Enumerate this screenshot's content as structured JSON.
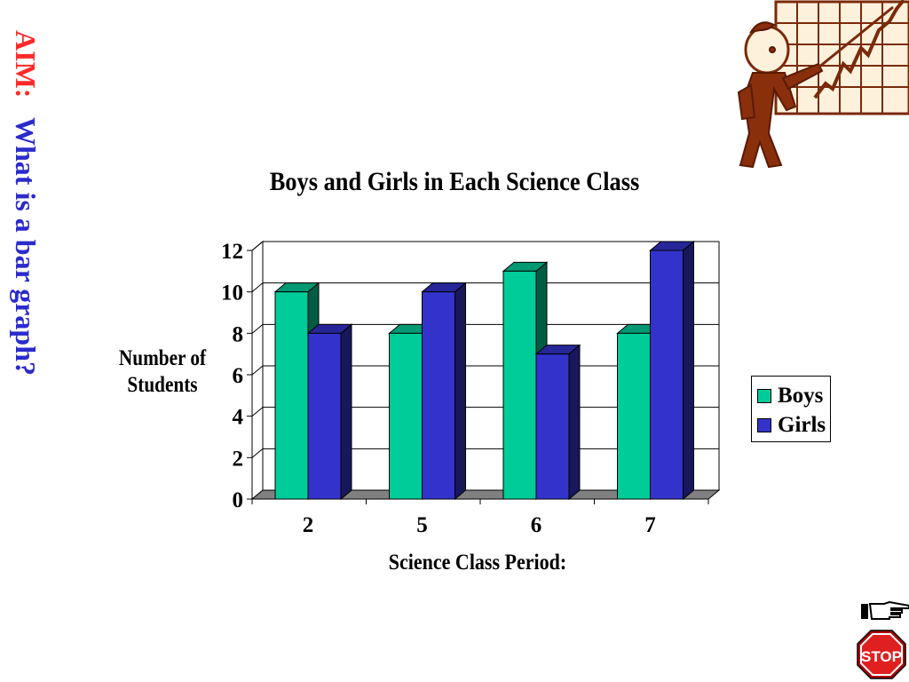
{
  "aim": {
    "label": "AIM:",
    "question": "What is a bar graph?"
  },
  "colors": {
    "boys": "#00cc99",
    "girls": "#3333cc",
    "aim_label": "#ff2a2a",
    "aim_question": "#2b2bcc"
  },
  "icons": {
    "clipart": "man-pointing-at-chart-icon",
    "next": "pointing-hand-icon",
    "stop": "stop-sign-icon"
  },
  "stop_label": "STOP",
  "chart_data": {
    "type": "bar",
    "title": "Boys and Girls in Each Science Class",
    "xlabel": "Science Class Period:",
    "ylabel": "Number of Students",
    "categories": [
      "2",
      "5",
      "6",
      "7"
    ],
    "series": [
      {
        "name": "Boys",
        "values": [
          10,
          8,
          11,
          8
        ]
      },
      {
        "name": "Girls",
        "values": [
          8,
          10,
          7,
          12
        ]
      }
    ],
    "ylim": [
      0,
      12
    ],
    "yticks": [
      0,
      2,
      4,
      6,
      8,
      10,
      12
    ],
    "grid": true,
    "legend": "right"
  }
}
